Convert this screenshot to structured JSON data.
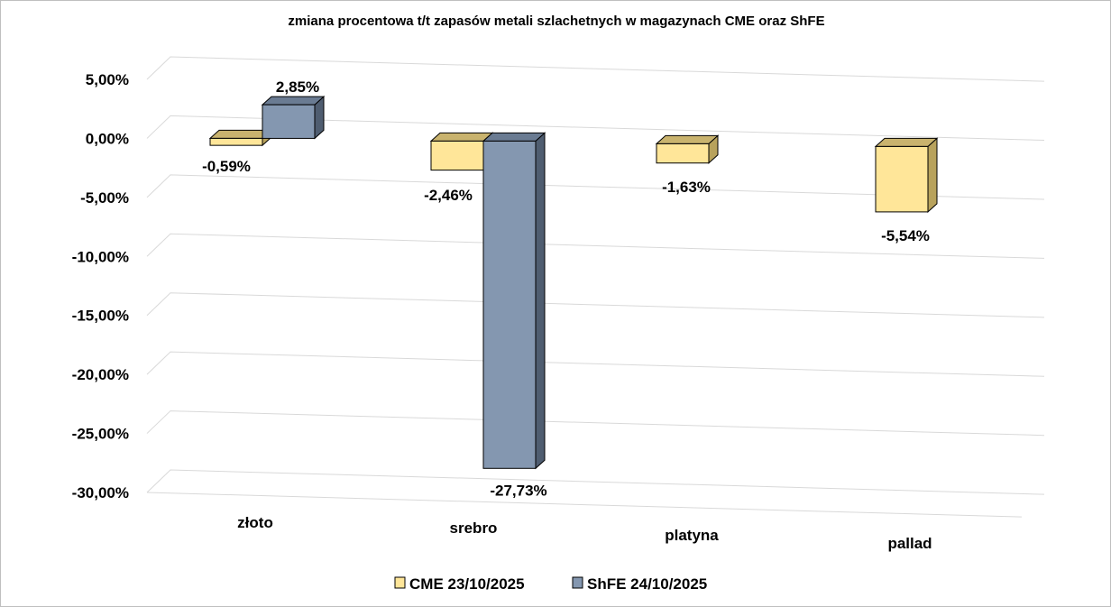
{
  "chart_data": {
    "type": "bar",
    "title": "zmiana procentowa t/t zapasów metali szlachetnych w magazynach CME oraz ShFE",
    "categories": [
      "złoto",
      "srebro",
      "platyna",
      "pallad"
    ],
    "series": [
      {
        "name": "CME 23/10/2025",
        "values": [
          -0.59,
          -2.46,
          -1.63,
          -5.54
        ],
        "labels": [
          "-0,59%",
          "-2,46%",
          "-1,63%",
          "-5,54%"
        ],
        "color_front": "#ffe699",
        "color_top": "#c9b36e",
        "color_side": "#b8a25c"
      },
      {
        "name": "ShFE 24/10/2025",
        "values": [
          2.85,
          -27.73,
          null,
          null
        ],
        "labels": [
          "2,85%",
          "-27,73%",
          "",
          ""
        ],
        "color_front": "#8497b0",
        "color_top": "#6a7b92",
        "color_side": "#4f5d70"
      }
    ],
    "ylim": [
      -30,
      5
    ],
    "yticks": [
      5,
      0,
      -5,
      -10,
      -15,
      -20,
      -25,
      -30
    ],
    "ytick_labels": [
      "5,00%",
      "0,00%",
      "-5,00%",
      "-10,00%",
      "-15,00%",
      "-20,00%",
      "-25,00%",
      "-30,00%"
    ],
    "grid": true,
    "legend": "bottom",
    "legend_labels": [
      "CME 23/10/2025",
      "ShFE 24/10/2025"
    ]
  }
}
